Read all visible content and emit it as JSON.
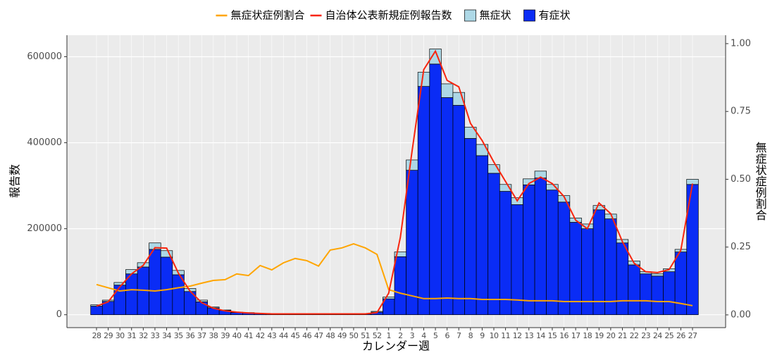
{
  "chart_data": {
    "type": "bar",
    "categories": [
      "28",
      "29",
      "30",
      "31",
      "32",
      "33",
      "34",
      "35",
      "36",
      "37",
      "38",
      "39",
      "40",
      "41",
      "42",
      "43",
      "44",
      "45",
      "46",
      "47",
      "48",
      "49",
      "50",
      "51",
      "52",
      "1",
      "2",
      "3",
      "4",
      "5",
      "6",
      "7",
      "8",
      "9",
      "10",
      "11",
      "12",
      "13",
      "14",
      "15",
      "16",
      "17",
      "18",
      "19",
      "20",
      "21",
      "22",
      "23",
      "24",
      "25",
      "26",
      "27"
    ],
    "series": [
      {
        "name": "無症状症例割合",
        "type": "line",
        "axis": "y2",
        "color": "#ffa500",
        "values": [
          0.112,
          0.1,
          0.088,
          0.093,
          0.091,
          0.088,
          0.093,
          0.1,
          0.106,
          0.117,
          0.127,
          0.13,
          0.151,
          0.145,
          0.182,
          0.166,
          0.192,
          0.208,
          0.2,
          0.18,
          0.239,
          0.247,
          0.262,
          0.247,
          0.223,
          0.093,
          0.08,
          0.07,
          0.06,
          0.06,
          0.062,
          0.06,
          0.06,
          0.057,
          0.057,
          0.057,
          0.055,
          0.052,
          0.052,
          0.052,
          0.049,
          0.049,
          0.049,
          0.049,
          0.049,
          0.052,
          0.052,
          0.052,
          0.049,
          0.049,
          0.042,
          0.034
        ]
      },
      {
        "name": "自治体公表新規症例報告数",
        "type": "line",
        "color": "#f8250e",
        "values": [
          20000,
          30000,
          65000,
          95000,
          115000,
          156000,
          155000,
          97000,
          55000,
          28000,
          15000,
          9000,
          6000,
          4000,
          3000,
          2000,
          2000,
          2000,
          2000,
          2000,
          2000,
          2000,
          2000,
          2000,
          5000,
          50000,
          180000,
          380000,
          570000,
          613000,
          545000,
          530000,
          445000,
          405000,
          355000,
          310000,
          265000,
          305000,
          320000,
          305000,
          275000,
          220000,
          200000,
          260000,
          235000,
          170000,
          120000,
          100000,
          98000,
          105000,
          150000,
          305000
        ]
      },
      {
        "name": "無症状",
        "type": "bar",
        "color": "#add8e6",
        "values": [
          3000,
          3000,
          6000,
          10000,
          10000,
          15000,
          15000,
          10000,
          7000,
          4000,
          2000,
          1000,
          1000,
          1000,
          500,
          400,
          400,
          400,
          400,
          400,
          400,
          400,
          500,
          700,
          1800,
          4000,
          11000,
          24000,
          33000,
          35000,
          32000,
          30000,
          26000,
          26000,
          20000,
          16000,
          16000,
          14000,
          16000,
          13000,
          15000,
          10000,
          11000,
          10000,
          11000,
          8000,
          9000,
          5000,
          5000,
          7000,
          6000,
          12000
        ]
      },
      {
        "name": "有症状",
        "type": "bar",
        "color": "#0a2cf5",
        "values": [
          20000,
          31000,
          69000,
          95000,
          111000,
          152000,
          134000,
          93000,
          54000,
          30000,
          16000,
          10000,
          5000,
          4000,
          2500,
          2000,
          1800,
          1600,
          1500,
          1300,
          1200,
          1200,
          1300,
          2000,
          6000,
          37000,
          135000,
          336000,
          531000,
          583000,
          505000,
          487000,
          410000,
          370000,
          329000,
          287000,
          256000,
          302000,
          318000,
          290000,
          262000,
          215000,
          200000,
          244000,
          223000,
          167000,
          116000,
          95000,
          90000,
          100000,
          146000,
          303000
        ]
      }
    ],
    "xlabel": "カレンダー週",
    "ylabel": "報告数",
    "y2label": "無症状症例割合",
    "ylim": [
      -30000,
      650000
    ],
    "yticks": [
      0,
      200000,
      400000,
      600000
    ],
    "y2lim": [
      -0.047,
      1.031
    ],
    "y2ticks": [
      {
        "value": 0,
        "label": "0.00"
      },
      {
        "value": 0.25,
        "label": "0.25"
      },
      {
        "value": 0.5,
        "label": "0.50"
      },
      {
        "value": 0.75,
        "label": "0.75"
      },
      {
        "value": 1,
        "label": "1.00"
      }
    ],
    "grid": true,
    "legend": "top"
  }
}
